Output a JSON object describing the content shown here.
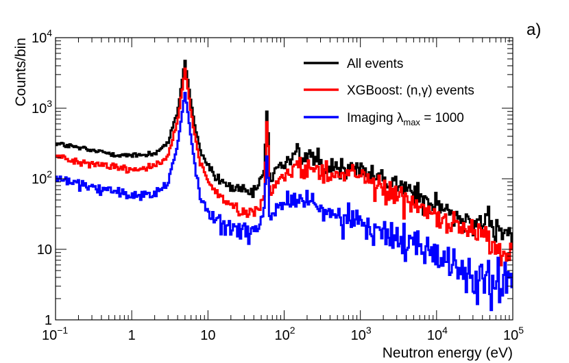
{
  "chart_data": {
    "type": "line",
    "style": "histogram-step",
    "panel_label": "a)",
    "xlabel": "Neutron energy (eV)",
    "ylabel": "Counts/bin",
    "xscale": "log",
    "yscale": "log",
    "xlim": [
      0.1,
      100000
    ],
    "ylim": [
      1,
      10000
    ],
    "grid": false,
    "legend_position": "top-right",
    "x_ticks": [
      {
        "value": 0.1,
        "base": "10",
        "exp": "−1"
      },
      {
        "value": 1,
        "base": "1",
        "exp": ""
      },
      {
        "value": 10,
        "base": "10",
        "exp": ""
      },
      {
        "value": 100,
        "base": "10",
        "exp": "2"
      },
      {
        "value": 1000,
        "base": "10",
        "exp": "3"
      },
      {
        "value": 10000,
        "base": "10",
        "exp": "4"
      },
      {
        "value": 100000,
        "base": "10",
        "exp": "5"
      }
    ],
    "y_ticks": [
      {
        "value": 1,
        "base": "1",
        "exp": ""
      },
      {
        "value": 10,
        "base": "10",
        "exp": ""
      },
      {
        "value": 100,
        "base": "10",
        "exp": "2"
      },
      {
        "value": 1000,
        "base": "10",
        "exp": "3"
      },
      {
        "value": 10000,
        "base": "10",
        "exp": "4"
      }
    ],
    "series": [
      {
        "name": "All events",
        "color": "#000000",
        "key_x": [
          0.1,
          0.3,
          1,
          2,
          3,
          4,
          4.6,
          5,
          5.5,
          6.5,
          8,
          12,
          20,
          40,
          55,
          60,
          65,
          80,
          150,
          300,
          1000,
          3000,
          10000,
          30000,
          100000
        ],
        "key_y": [
          320,
          250,
          210,
          230,
          320,
          900,
          2500,
          4800,
          2300,
          700,
          240,
          110,
          75,
          60,
          130,
          1200,
          90,
          140,
          220,
          180,
          140,
          85,
          40,
          28,
          15
        ]
      },
      {
        "name": "XGBoost: (n,γ) events",
        "legend_main": "XGBoost: (n,γ) events",
        "color": "#ff0000",
        "key_x": [
          0.1,
          0.3,
          1,
          2,
          3,
          4,
          4.6,
          5,
          5.5,
          6.5,
          8,
          12,
          20,
          40,
          55,
          60,
          65,
          80,
          150,
          300,
          1000,
          3000,
          10000,
          30000,
          100000
        ],
        "key_y": [
          210,
          165,
          135,
          150,
          210,
          650,
          1800,
          3700,
          1700,
          500,
          160,
          65,
          40,
          30,
          60,
          900,
          50,
          90,
          150,
          130,
          110,
          60,
          28,
          20,
          9
        ]
      },
      {
        "name": "Imaging λmax = 1000",
        "legend_main": "Imaging λ",
        "legend_sub": "max",
        "legend_tail": " = 1000",
        "color": "#0000ff",
        "key_x": [
          0.1,
          0.3,
          1,
          2,
          3,
          4,
          4.6,
          5,
          5.5,
          6.5,
          8,
          12,
          20,
          40,
          55,
          60,
          65,
          80,
          150,
          300,
          1000,
          3000,
          10000,
          30000,
          100000
        ],
        "key_y": [
          100,
          75,
          58,
          62,
          90,
          300,
          900,
          1700,
          800,
          200,
          55,
          28,
          20,
          17,
          35,
          250,
          20,
          40,
          55,
          38,
          22,
          16,
          8,
          5,
          3
        ]
      }
    ]
  }
}
